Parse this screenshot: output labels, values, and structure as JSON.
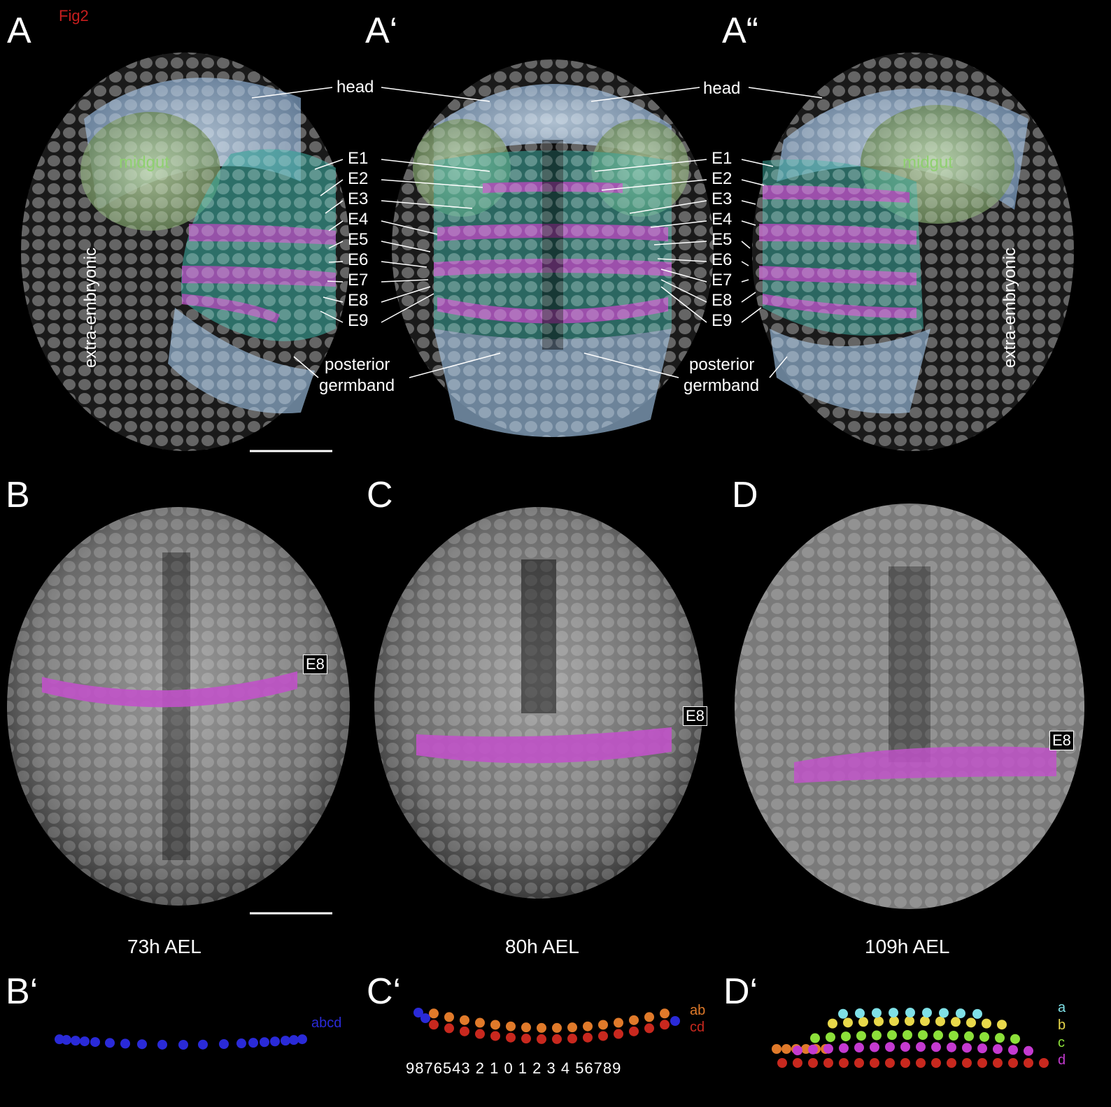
{
  "figure_tag": "Fig2",
  "panels": {
    "A": "A",
    "A1": "A‘",
    "A2": "A“",
    "B": "B",
    "C": "C",
    "D": "D",
    "B1": "B‘",
    "C1": "C‘",
    "D1": "D‘"
  },
  "labels": {
    "head": "head",
    "midgut": "midgut",
    "extra_embryonic": "extra-embryonic",
    "posterior": "posterior",
    "germband": "germband",
    "rows": [
      "E1",
      "E2",
      "E3",
      "E4",
      "E5",
      "E6",
      "E7",
      "E8",
      "E9"
    ],
    "e8": "E8"
  },
  "times": {
    "B": "73h AEL",
    "C": "80h AEL",
    "D": "109h AEL"
  },
  "schematic": {
    "b_label": "abcd",
    "c_labels": [
      "ab",
      "cd"
    ],
    "c_numbers": "9876543 2 1 0 1 2 3 4 56789",
    "d_labels": [
      "a",
      "b",
      "c",
      "d"
    ]
  },
  "colors": {
    "head": "#a9c4de",
    "midgut": "#8fb07a",
    "cyan": "#4fd6c4",
    "magenta": "#b04bb8",
    "blue": "#2a2ad8",
    "orange": "#e07a2a",
    "red": "#c8281e",
    "aqua": "#7fe0e6",
    "yellow": "#e8d84a",
    "green": "#8ce03a",
    "purple": "#c43ad0",
    "fig_tag": "#c81e1e"
  }
}
